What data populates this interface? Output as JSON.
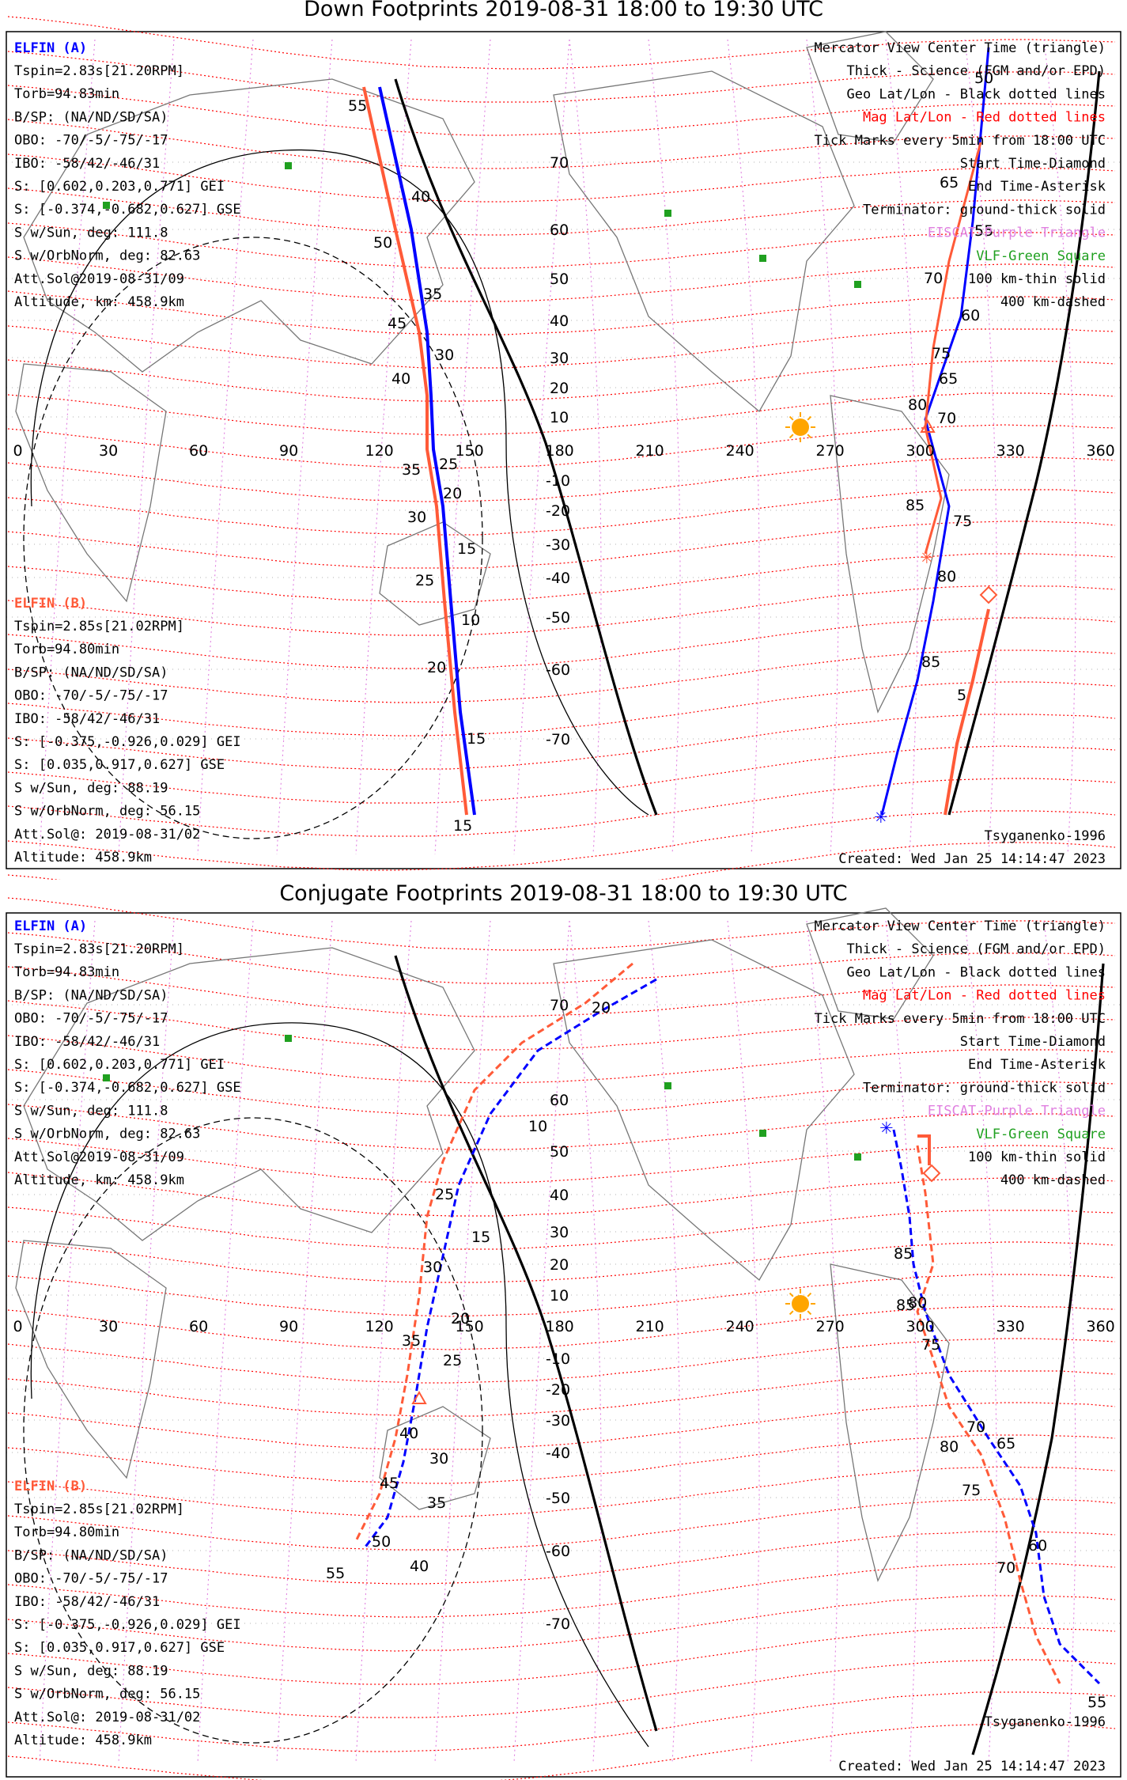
{
  "colors": {
    "elfin_a": "#0000ff",
    "elfin_b": "#ff5a38",
    "mag_grid": "#ff0000",
    "geo_grid": "#000000",
    "elfin_station": "#e080e0",
    "vlf_station": "#20a020",
    "sun": "#ffa500"
  },
  "panels": [
    {
      "title": "Down Footprints 2019-08-31 18:00 to 19:30 UTC",
      "elfin_a": {
        "name": "ELFIN (A)",
        "lines": [
          "Tspin=2.83s[21.20RPM]",
          "Torb=94.83min",
          "B/SP: (NA/ND/SD/SA)",
          "OBO: -70/-5/-75/-17",
          "IBO: -58/42/-46/31",
          "S: [0.602,0.203,0.771] GEI",
          "S: [-0.374,-0.682,0.627] GSE",
          "S w/Sun, deg: 111.8",
          "S w/OrbNorm, deg: 82.63",
          "Att.Sol@2019-08-31/09",
          "Altitude, km: 458.9km"
        ]
      },
      "elfin_b": {
        "name": "ELFIN (B)",
        "lines": [
          "Tspin=2.85s[21.02RPM]",
          "Torb=94.80min",
          "B/SP: (NA/ND/SD/SA)",
          "OBO: -70/-5/-75/-17",
          "IBO: -58/42/-46/31",
          "S: [-0.375,-0.926,0.029] GEI",
          "S: [0.035,0.917,0.627] GSE",
          "S w/Sun, deg: 88.19",
          "S w/OrbNorm, deg: 56.15",
          "Att.Sol@: 2019-08-31/02",
          "Altitude: 458.9km"
        ]
      },
      "legend": [
        "Mercator View Center Time (triangle)",
        "Thick - Science (FGM and/or EPD)",
        "Geo Lat/Lon - Black dotted lines",
        "Mag Lat/Lon - Red dotted lines",
        "Tick Marks every 5min from 18:00 UTC",
        "Start Time-Diamond",
        "End Time-Asterisk",
        "Terminator: ground-thick solid",
        "EISCAT-Purple Triangle",
        "VLF-Green Square",
        "100 km-thin solid",
        "400 km-dashed"
      ],
      "model": "Tsyganenko-1996",
      "created": "Created: Wed Jan 25 14:14:47 2023",
      "a_ticks": [
        "50",
        "55",
        "60",
        "65",
        "70",
        "75",
        "80",
        "85",
        "40",
        "35",
        "30",
        "25",
        "20",
        "15",
        "10",
        "15"
      ],
      "b_ticks": [
        "55",
        "50",
        "45",
        "40",
        "35",
        "30",
        "25",
        "20",
        "15",
        "65",
        "70",
        "75",
        "80",
        "85",
        "5"
      ]
    },
    {
      "title": "Conjugate Footprints 2019-08-31 18:00 to 19:30 UTC",
      "elfin_a": {
        "name": "ELFIN (A)",
        "lines": [
          "Tspin=2.83s[21.20RPM]",
          "Torb=94.83min",
          "B/SP: (NA/ND/SD/SA)",
          "OBO: -70/-5/-75/-17",
          "IBO: -58/42/-46/31",
          "S: [0.602,0.203,0.771] GEI",
          "S: [-0.374,-0.682,0.627] GSE",
          "S w/Sun, deg: 111.8",
          "S w/OrbNorm, deg: 82.63",
          "Att.Sol@2019-08-31/09",
          "Altitude, km: 458.9km"
        ]
      },
      "elfin_b": {
        "name": "ELFIN (B)",
        "lines": [
          "Tspin=2.85s[21.02RPM]",
          "Torb=94.80min",
          "B/SP: (NA/ND/SD/SA)",
          "OBO: -70/-5/-75/-17",
          "IBO: -58/42/-46/31",
          "S: [-0.375,-0.926,0.029] GEI",
          "S: [0.035,0.917,0.627] GSE",
          "S w/Sun, deg: 88.19",
          "S w/OrbNorm, deg: 56.15",
          "Att.Sol@: 2019-08-31/02",
          "Altitude: 458.9km"
        ]
      },
      "legend": [
        "Mercator View Center Time (triangle)",
        "Thick - Science (FGM and/or EPD)",
        "Geo Lat/Lon - Black dotted lines",
        "Mag Lat/Lon - Red dotted lines",
        "Tick Marks every 5min from 18:00 UTC",
        "Start Time-Diamond",
        "End Time-Asterisk",
        "Terminator: ground-thick solid",
        "EISCAT-Purple Triangle",
        "VLF-Green Square",
        "100 km-thin solid",
        "400 km-dashed"
      ],
      "model": "Tsyganenko-1996",
      "created": "Created: Wed Jan 25 14:14:47 2023",
      "a_ticks": [
        "10",
        "15",
        "20",
        "25",
        "30",
        "35",
        "40",
        "85",
        "80",
        "75",
        "70",
        "65",
        "60",
        "55"
      ],
      "b_ticks": [
        "20",
        "25",
        "30",
        "35",
        "40",
        "45",
        "50",
        "55",
        "85",
        "80",
        "75",
        "70"
      ]
    }
  ],
  "map_axes": {
    "lon_labels": [
      "0",
      "30",
      "60",
      "90",
      "120",
      "150",
      "180",
      "210",
      "240",
      "270",
      "300",
      "330",
      "360"
    ],
    "lat_labels_north": [
      "70",
      "60",
      "50",
      "40",
      "30",
      "20",
      "10"
    ],
    "lat_labels_south": [
      "-10",
      "-20",
      "-30",
      "-40",
      "-50",
      "-60",
      "-70"
    ]
  }
}
